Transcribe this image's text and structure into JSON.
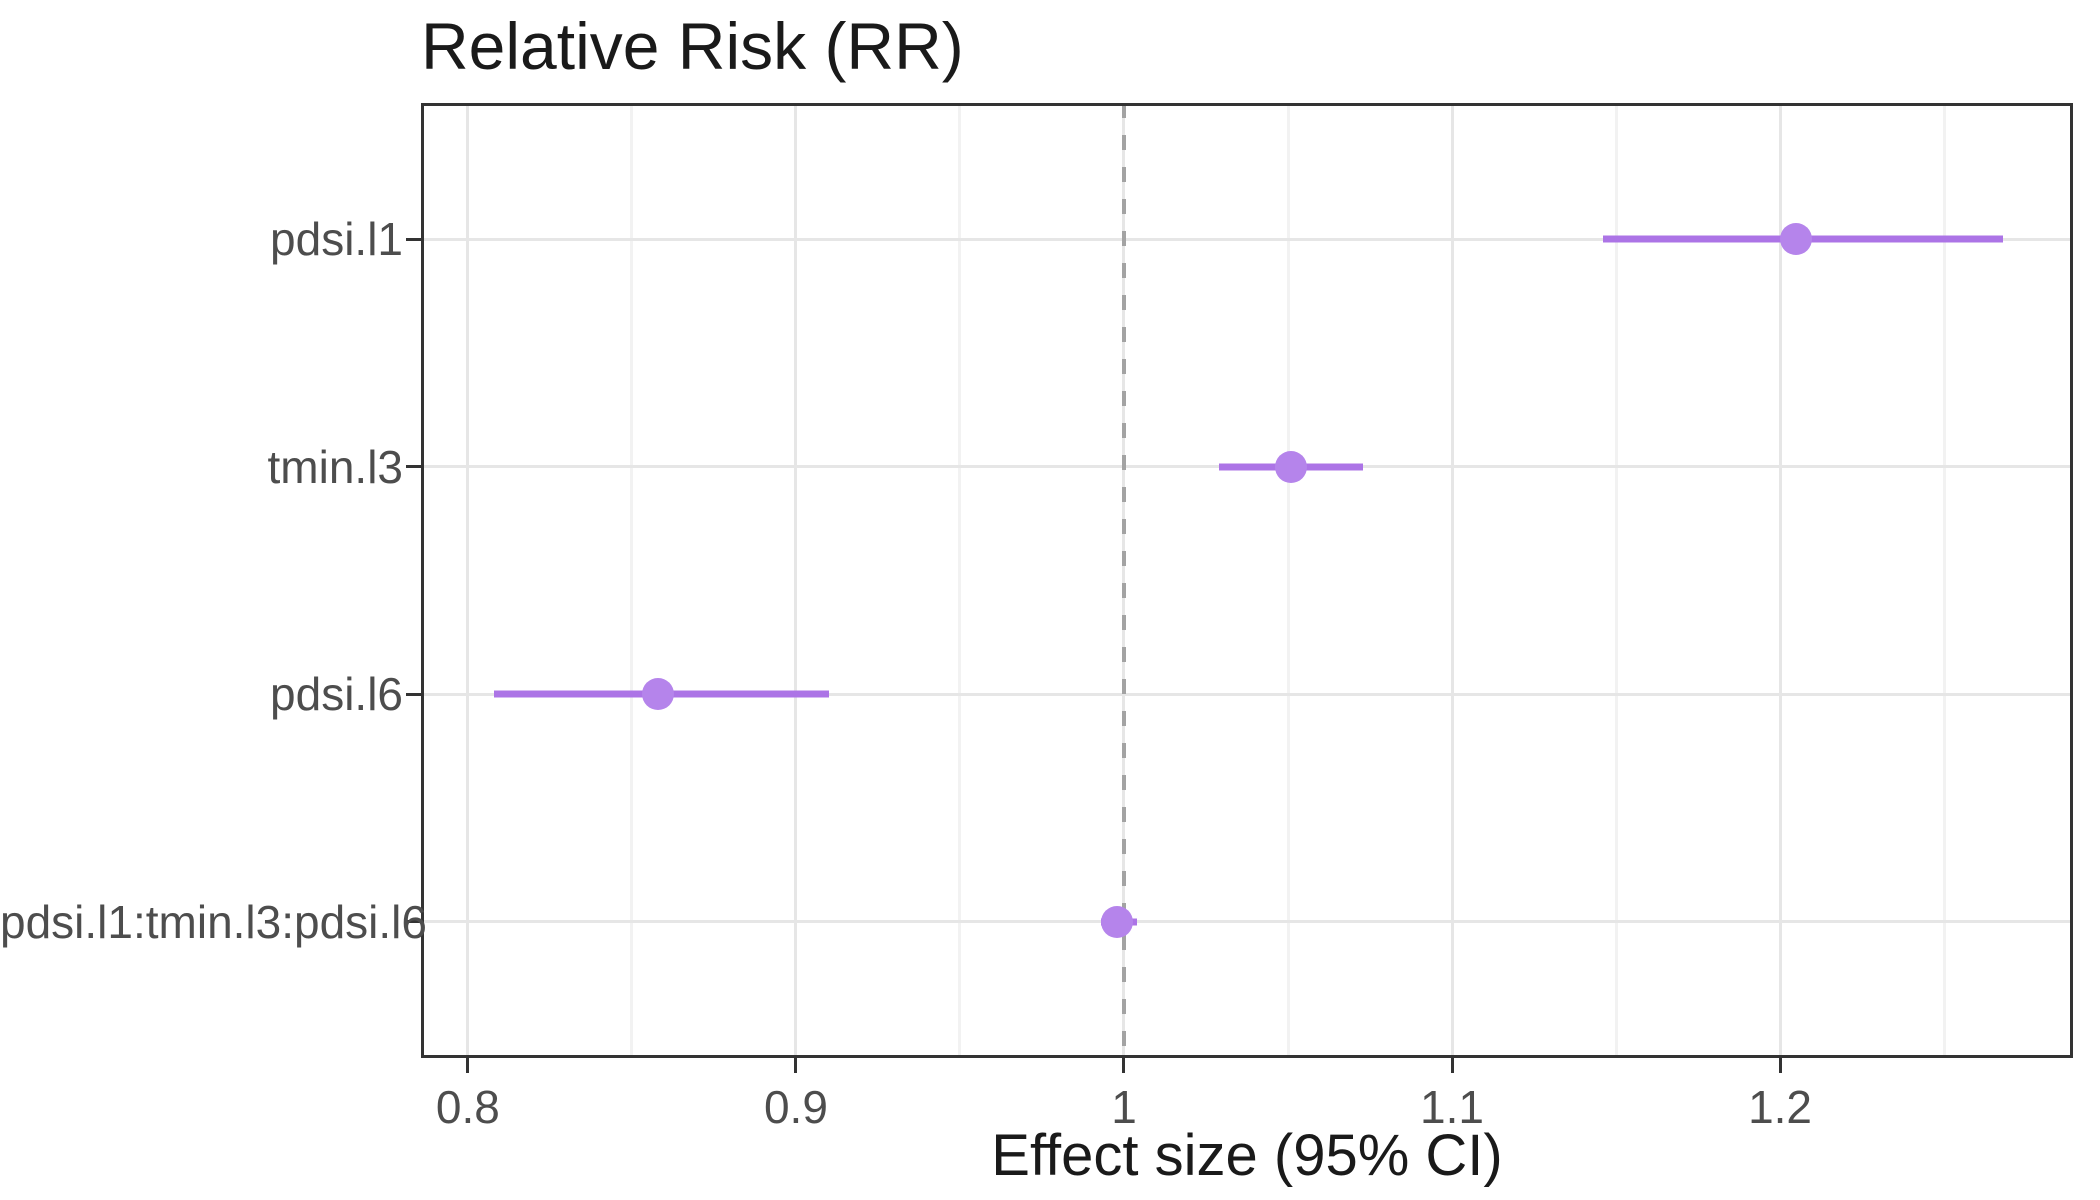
{
  "title": "Relative Risk (RR)",
  "chart_data": {
    "type": "scatter",
    "subtype": "forest-plot-dot-and-ci",
    "title": "Relative Risk (RR)",
    "xlabel": "Effect size (95% CI)",
    "ylabel": "",
    "xlim": [
      0.7857,
      1.2893
    ],
    "x_major_ticks": [
      0.8,
      0.9,
      1.0,
      1.1,
      1.2
    ],
    "x_major_tick_labels": [
      "0.8",
      "0.9",
      "1",
      "1.1",
      "1.2"
    ],
    "x_minor_ticks": [
      0.85,
      0.95,
      1.05,
      1.15,
      1.25
    ],
    "reference_line_x": 1.0,
    "grid": "major-and-minor-x, major-y, light gray on white",
    "legend": false,
    "rows": [
      {
        "label": "pdsi.l1",
        "rr": 1.205,
        "ci_low": 1.146,
        "ci_high": 1.268
      },
      {
        "label": "tmin.l3",
        "rr": 1.051,
        "ci_low": 1.029,
        "ci_high": 1.073
      },
      {
        "label": "pdsi.l6",
        "rr": 0.858,
        "ci_low": 0.808,
        "ci_high": 0.91
      },
      {
        "label": "pdsi.l1:tmin.l3:pdsi.l6",
        "rr": 0.998,
        "ci_low": 0.993,
        "ci_high": 1.004
      }
    ],
    "colors": {
      "point": "#B584EB",
      "ci_line": "#AC74E6",
      "reference_line": "#A3A3A3",
      "grid_major": "#E6E6E6",
      "grid_minor": "#F2F2F2",
      "axis_text": "#4D4D4D",
      "title_text": "#1A1A1A",
      "panel_border": "#333333",
      "background": "#FFFFFF"
    }
  }
}
